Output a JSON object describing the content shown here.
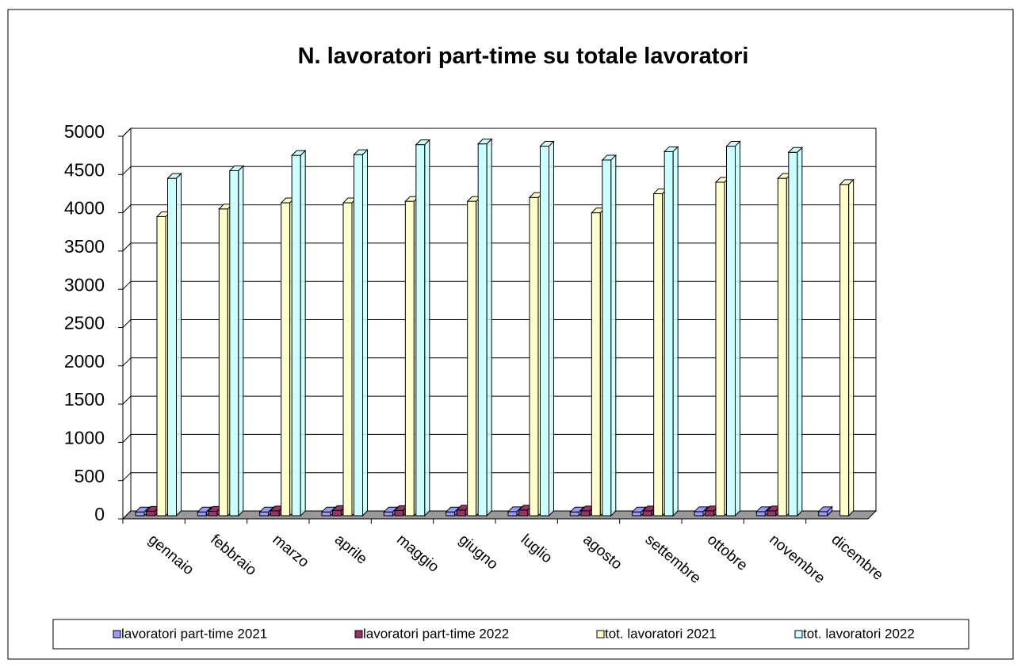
{
  "chart_data": {
    "type": "bar3d",
    "title": "N. lavoratori part-time su totale lavoratori",
    "categories": [
      "gennaio",
      "febbraio",
      "marzo",
      "aprile",
      "maggio",
      "giugno",
      "luglio",
      "agosto",
      "settembre",
      "ottobre",
      "novembre",
      "dicembre"
    ],
    "series": [
      {
        "name": "lavoratori part-time 2021",
        "color": "#9999ff",
        "values": [
          90,
          90,
          90,
          90,
          90,
          90,
          95,
          90,
          90,
          95,
          95,
          95
        ]
      },
      {
        "name": "lavoratori part-time 2022",
        "color": "#993366",
        "values": [
          100,
          100,
          105,
          110,
          110,
          115,
          115,
          105,
          105,
          105,
          105,
          null
        ]
      },
      {
        "name": "tot. lavoratori 2021",
        "color": "#ffffcc",
        "values": [
          3950,
          4050,
          4130,
          4130,
          4150,
          4150,
          4200,
          4000,
          4250,
          4400,
          4450,
          4370
        ]
      },
      {
        "name": "tot. lavoratori 2022",
        "color": "#ccffff",
        "values": [
          4450,
          4550,
          4750,
          4760,
          4890,
          4900,
          4870,
          4690,
          4800,
          4870,
          4790,
          null
        ]
      }
    ],
    "ylim": [
      0,
      5000
    ],
    "yticks": [
      0,
      500,
      1000,
      1500,
      2000,
      2500,
      3000,
      3500,
      4000,
      4500,
      5000
    ],
    "grid": true,
    "legend": "bottom"
  }
}
